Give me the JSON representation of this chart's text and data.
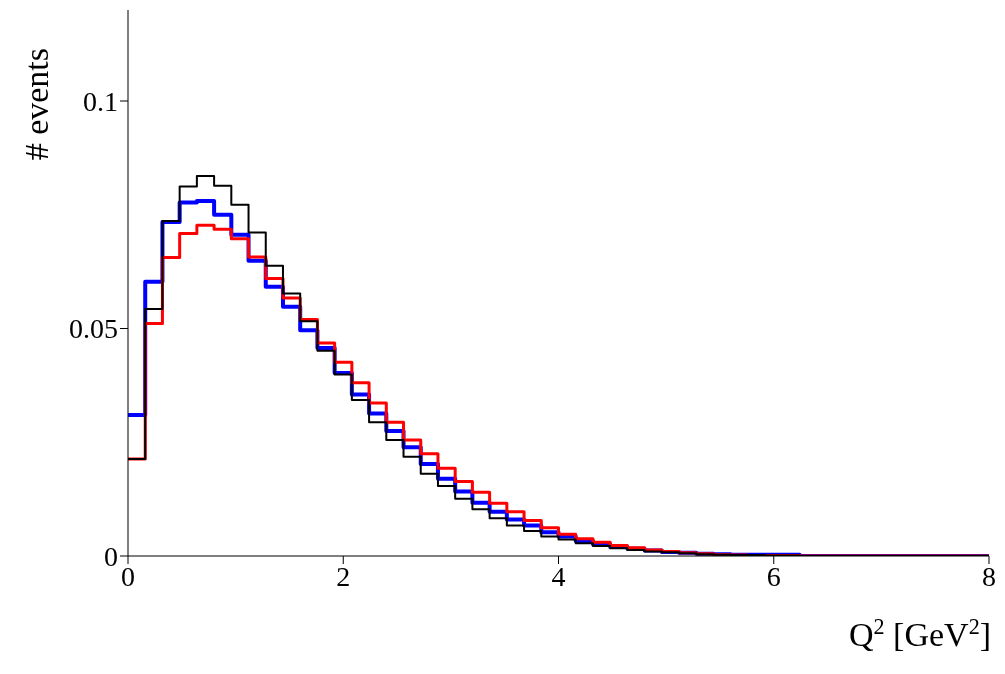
{
  "chart_data": {
    "type": "histogram",
    "xlabel": "Q$^{2}$ [GeV$^{2}$]",
    "ylabel": "# events",
    "bins": [
      0,
      0.16,
      0.32,
      0.48,
      0.64,
      0.8,
      0.96,
      1.12,
      1.28,
      1.44,
      1.6,
      1.76,
      1.92,
      2.08,
      2.24,
      2.4,
      2.56,
      2.72,
      2.88,
      3.04,
      3.2,
      3.36,
      3.52,
      3.68,
      3.84,
      4,
      4.16,
      4.32,
      4.48,
      4.64,
      4.8,
      4.96,
      5.12,
      5.28,
      5.44,
      5.6,
      5.76,
      5.92,
      6.08,
      6.24,
      6.4,
      6.56,
      6.72,
      6.88,
      7.04,
      7.2,
      7.36,
      7.52,
      7.68,
      7.84,
      8
    ],
    "series": [
      {
        "color": "#0000ff",
        "values": [
          0.031,
          0.0603,
          0.0734,
          0.0777,
          0.078,
          0.075,
          0.0706,
          0.0649,
          0.0592,
          0.0548,
          0.0496,
          0.0457,
          0.0402,
          0.0355,
          0.0313,
          0.0275,
          0.0239,
          0.0202,
          0.017,
          0.0142,
          0.0117,
          0.0097,
          0.008,
          0.0067,
          0.0052,
          0.0043,
          0.0033,
          0.0026,
          0.002,
          0.0016,
          0.0012,
          0.0009,
          0.0007,
          0.0005,
          0.0004,
          0.0003,
          0.0003,
          0.0003,
          0.0003,
          0,
          0,
          0,
          0,
          0,
          0,
          0,
          0,
          0,
          0,
          0
        ]
      },
      {
        "color": "#ff0000",
        "values": [
          0.0213,
          0.0511,
          0.0656,
          0.0709,
          0.0727,
          0.0718,
          0.0697,
          0.0657,
          0.061,
          0.0567,
          0.052,
          0.0468,
          0.0426,
          0.0381,
          0.0336,
          0.0294,
          0.0255,
          0.0225,
          0.0193,
          0.0164,
          0.014,
          0.0116,
          0.0097,
          0.0078,
          0.0062,
          0.0048,
          0.0038,
          0.003,
          0.0023,
          0.0018,
          0.0013,
          0.001,
          0.0007,
          0.0005,
          0.0003,
          0.0002,
          0.0001,
          0.0001,
          0.0001,
          0,
          0,
          0,
          0,
          0,
          0,
          0,
          0,
          0,
          0,
          0
        ]
      },
      {
        "color": "#000000",
        "values": [
          0.0213,
          0.0543,
          0.0736,
          0.0812,
          0.0835,
          0.0814,
          0.0772,
          0.0711,
          0.0638,
          0.0577,
          0.0516,
          0.0451,
          0.0399,
          0.0343,
          0.0294,
          0.0255,
          0.0218,
          0.0181,
          0.0154,
          0.0126,
          0.0103,
          0.0083,
          0.0067,
          0.0055,
          0.0043,
          0.0036,
          0.0028,
          0.0022,
          0.0017,
          0.0013,
          0.001,
          0.0008,
          0.0006,
          0.0004,
          0.0003,
          0.0002,
          0.0002,
          0.0001,
          0.0001,
          0,
          0,
          0,
          0,
          0,
          0,
          0,
          0,
          0,
          0,
          0
        ]
      }
    ],
    "xlim": [
      0,
      8
    ],
    "xticks": [
      0,
      2,
      4,
      6,
      8
    ],
    "ylim": [
      0,
      0.12
    ],
    "yticks": [
      0,
      0.05,
      0.1
    ],
    "grid": false,
    "legend": false
  }
}
